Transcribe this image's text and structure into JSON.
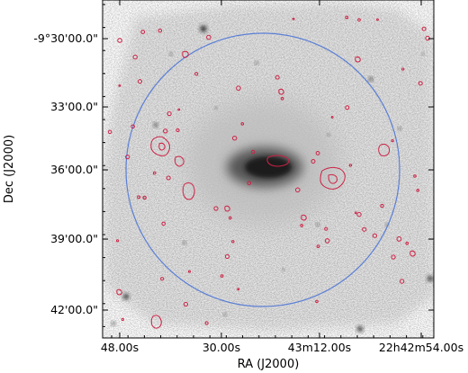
{
  "chart_data": {
    "type": "image",
    "xlabel": "RA (J2000)",
    "ylabel": "Dec (J2000)",
    "x_ticks": [
      "48.00s",
      "30.00s",
      "43m12.00s",
      "22h42m54.00s"
    ],
    "y_ticks": [
      "-9°30'00.0\"",
      "33'00.0\"",
      "36'00.0\"",
      "39'00.0\"",
      "42'00.0\""
    ],
    "grid": false,
    "overlays": [
      {
        "kind": "circle",
        "color": "#5b7fd6"
      },
      {
        "kind": "contours",
        "color": "#cc2244"
      }
    ],
    "colormap": "grayscale-inverted"
  }
}
